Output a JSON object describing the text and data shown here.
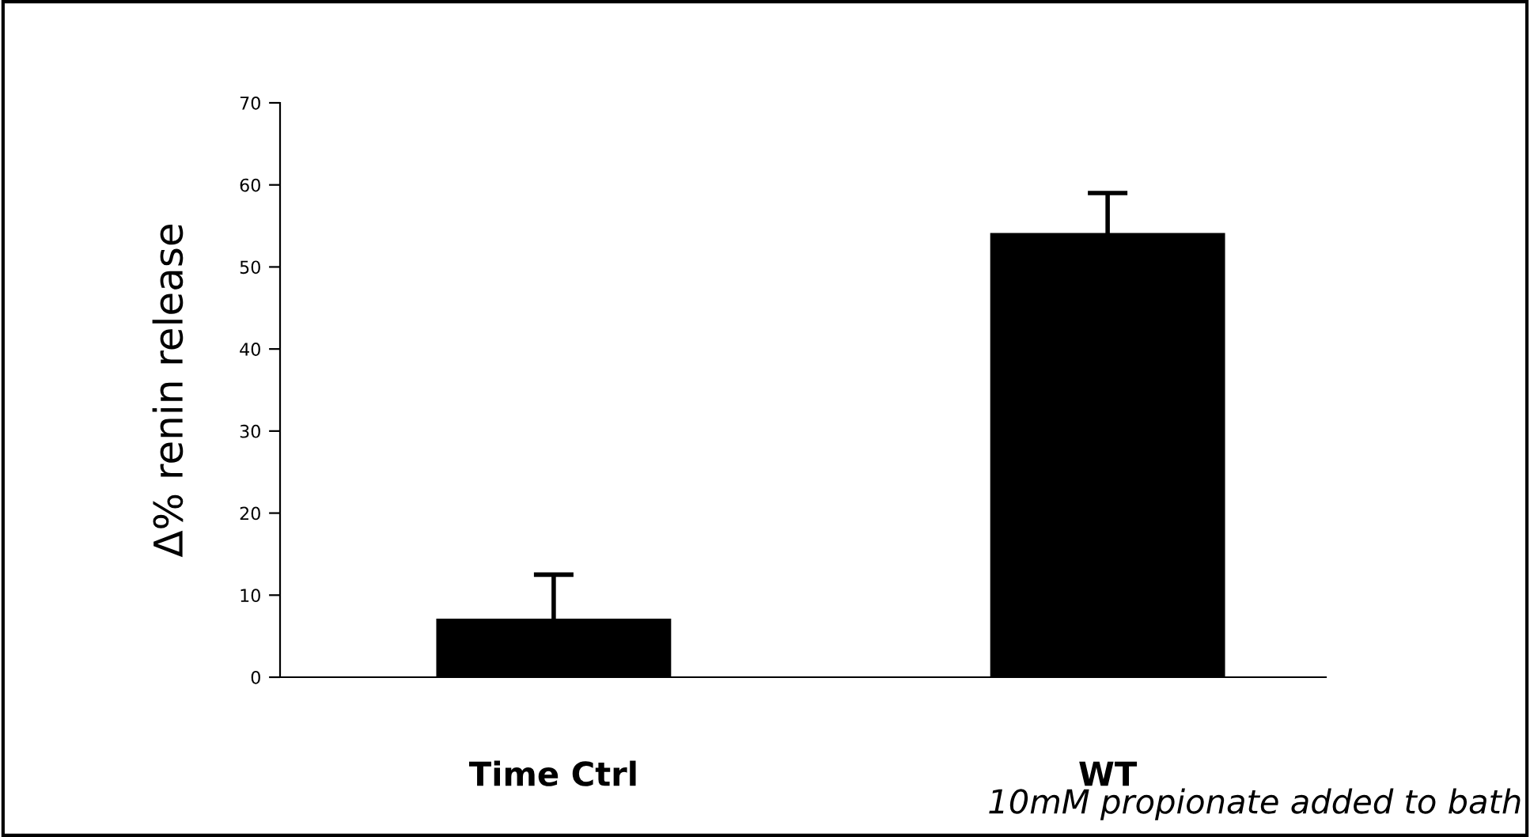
{
  "chart_data": {
    "type": "bar",
    "ylabel": "Δ% renin release",
    "categories": [
      "Time Ctrl",
      "WT"
    ],
    "values": [
      7,
      54
    ],
    "errors": [
      5.5,
      5
    ],
    "color": "#000000",
    "ylim": [
      0,
      70
    ],
    "yticks": [
      0,
      10,
      20,
      30,
      40,
      50,
      60,
      70
    ],
    "grid": false,
    "legend": false,
    "annotations": [
      "10mM propionate added to bath"
    ]
  }
}
